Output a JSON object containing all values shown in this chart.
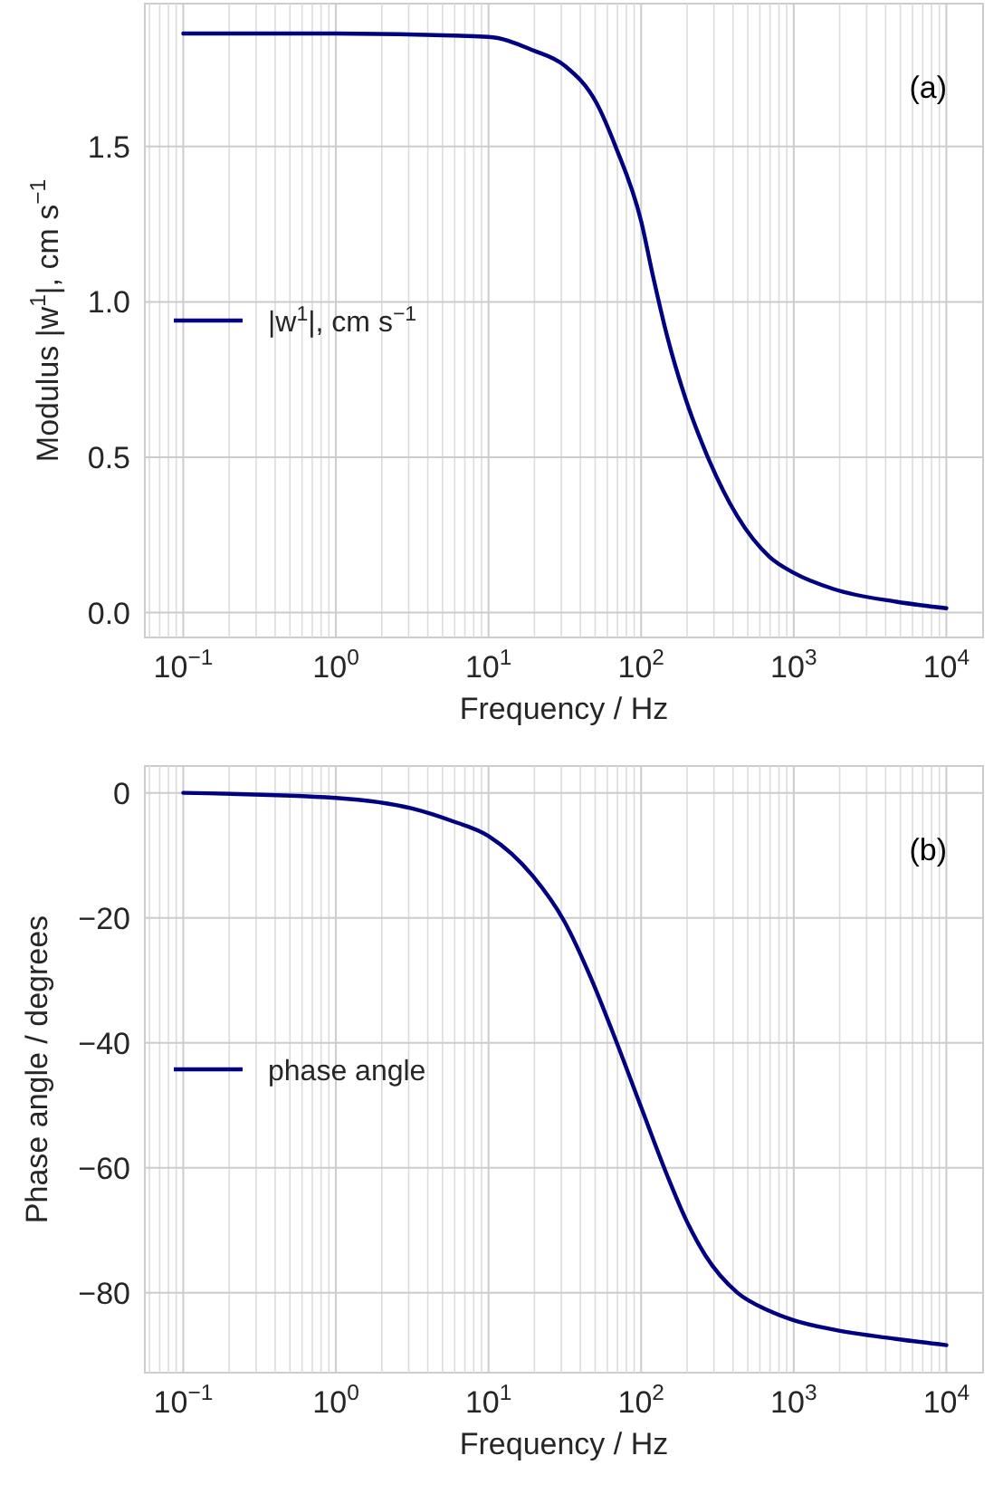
{
  "chart_data": [
    {
      "type": "line",
      "xlabel": "Frequency / Hz",
      "ylabel": "Modulus |w$^{1}$|, cm s$^{−1}$",
      "log": "x",
      "grid": true,
      "legend": "center left",
      "annotations": [
        "(a)"
      ],
      "x": [
        0.1,
        1,
        10,
        19.5,
        31.6,
        51,
        68,
        100,
        120,
        148,
        195,
        263,
        427,
        692,
        1000,
        1820,
        4680,
        10000
      ],
      "series": [
        {
          "name": "|w$^{1}$|, cm s$^{−1}$",
          "color": "#000080",
          "values": [
            1.864,
            1.864,
            1.853,
            1.81,
            1.76,
            1.64,
            1.5,
            1.26,
            1.08,
            0.89,
            0.69,
            0.52,
            0.31,
            0.18,
            0.128,
            0.076,
            0.035,
            0.014
          ]
        }
      ],
      "xlim": [
        0.056,
        17400
      ],
      "ylim": [
        -0.08,
        1.96
      ],
      "xticks": [
        {
          "value": 0.1,
          "label": "10$^{−1}$"
        },
        {
          "value": 1,
          "label": "10$^{0}$"
        },
        {
          "value": 10,
          "label": "10$^{1}$"
        },
        {
          "value": 100,
          "label": "10$^{2}$"
        },
        {
          "value": 1000,
          "label": "10$^{3}$"
        },
        {
          "value": 10000,
          "label": "10$^{4}$"
        }
      ],
      "yticks": [
        {
          "value": 0,
          "label": "0.0"
        },
        {
          "value": 0.5,
          "label": "0.5"
        },
        {
          "value": 1,
          "label": "1.0"
        },
        {
          "value": 1.5,
          "label": "1.5"
        }
      ]
    },
    {
      "type": "line",
      "xlabel": "Frequency / Hz",
      "ylabel": "Phase angle / degrees",
      "log": "x",
      "grid": true,
      "legend": "center left",
      "annotations": [
        "(b)"
      ],
      "x": [
        0.1,
        1,
        3.16,
        5.62,
        10,
        19.5,
        31.6,
        46.8,
        68,
        100,
        148,
        195,
        263,
        427,
        692,
        1000,
        1820,
        4680,
        10000
      ],
      "series": [
        {
          "name": "phase angle",
          "color": "#000080",
          "values": [
            0,
            -0.8,
            -2.5,
            -4.4,
            -6.9,
            -13.3,
            -20.7,
            -29.6,
            -39.5,
            -50.3,
            -61.2,
            -68.1,
            -74,
            -80,
            -82.9,
            -84.4,
            -85.9,
            -87.4,
            -88.4
          ]
        }
      ],
      "xlim": [
        0.056,
        17400
      ],
      "ylim": [
        -92.8,
        4.3
      ],
      "xticks": [
        {
          "value": 0.1,
          "label": "10$^{−1}$"
        },
        {
          "value": 1,
          "label": "10$^{0}$"
        },
        {
          "value": 10,
          "label": "10$^{1}$"
        },
        {
          "value": 100,
          "label": "10$^{2}$"
        },
        {
          "value": 1000,
          "label": "10$^{3}$"
        },
        {
          "value": 10000,
          "label": "10$^{4}$"
        }
      ],
      "yticks": [
        {
          "value": 0,
          "label": "0"
        },
        {
          "value": -20,
          "label": "−20"
        },
        {
          "value": -40,
          "label": "−40"
        },
        {
          "value": -60,
          "label": "−60"
        },
        {
          "value": -80,
          "label": "−80"
        }
      ]
    }
  ]
}
